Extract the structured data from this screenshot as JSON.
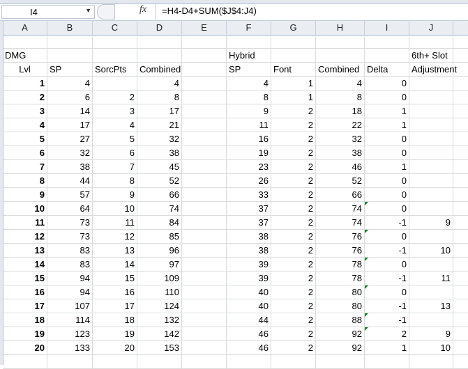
{
  "name_box": "I4",
  "formula": "=H4-D4+SUM($J$4:J4)",
  "columns": [
    "A",
    "B",
    "C",
    "D",
    "E",
    "F",
    "G",
    "H",
    "I",
    "J"
  ],
  "header_rows": [
    [
      "DMG",
      "",
      "",
      "",
      "",
      "Hybrid",
      "",
      "",
      "",
      "6th+ Slot"
    ],
    [
      "Lvl",
      "SP",
      "SorcPts",
      "Combined",
      "",
      "SP",
      "Font",
      "Combined",
      "Delta",
      "Adjustment"
    ]
  ],
  "rows": [
    [
      "1",
      "4",
      "",
      "4",
      "",
      "4",
      "1",
      "4",
      "0",
      ""
    ],
    [
      "2",
      "6",
      "2",
      "8",
      "",
      "8",
      "1",
      "8",
      "0",
      ""
    ],
    [
      "3",
      "14",
      "3",
      "17",
      "",
      "9",
      "2",
      "18",
      "1",
      ""
    ],
    [
      "4",
      "17",
      "4",
      "21",
      "",
      "11",
      "2",
      "22",
      "1",
      ""
    ],
    [
      "5",
      "27",
      "5",
      "32",
      "",
      "16",
      "2",
      "32",
      "0",
      ""
    ],
    [
      "6",
      "32",
      "6",
      "38",
      "",
      "19",
      "2",
      "38",
      "0",
      ""
    ],
    [
      "7",
      "38",
      "7",
      "45",
      "",
      "23",
      "2",
      "46",
      "1",
      ""
    ],
    [
      "8",
      "44",
      "8",
      "52",
      "",
      "26",
      "2",
      "52",
      "0",
      ""
    ],
    [
      "9",
      "57",
      "9",
      "66",
      "",
      "33",
      "2",
      "66",
      "0",
      ""
    ],
    [
      "10",
      "64",
      "10",
      "74",
      "",
      "37",
      "2",
      "74",
      "0",
      ""
    ],
    [
      "11",
      "73",
      "11",
      "84",
      "",
      "37",
      "2",
      "74",
      "-1",
      "9"
    ],
    [
      "12",
      "73",
      "12",
      "85",
      "",
      "38",
      "2",
      "76",
      "0",
      ""
    ],
    [
      "13",
      "83",
      "13",
      "96",
      "",
      "38",
      "2",
      "76",
      "-1",
      "10"
    ],
    [
      "14",
      "83",
      "14",
      "97",
      "",
      "39",
      "2",
      "78",
      "0",
      ""
    ],
    [
      "15",
      "94",
      "15",
      "109",
      "",
      "39",
      "2",
      "78",
      "-1",
      "11"
    ],
    [
      "16",
      "94",
      "16",
      "110",
      "",
      "40",
      "2",
      "80",
      "0",
      ""
    ],
    [
      "17",
      "107",
      "17",
      "124",
      "",
      "40",
      "2",
      "80",
      "-1",
      "13"
    ],
    [
      "18",
      "114",
      "18",
      "132",
      "",
      "44",
      "2",
      "88",
      "-1",
      ""
    ],
    [
      "19",
      "123",
      "19",
      "142",
      "",
      "46",
      "2",
      "92",
      "2",
      "9"
    ],
    [
      "20",
      "133",
      "20",
      "153",
      "",
      "46",
      "2",
      "92",
      "1",
      "10"
    ]
  ],
  "error_flag_levels": [
    10,
    12,
    14,
    16,
    18,
    19
  ],
  "colors": {
    "error_flag": "#1e7b2a",
    "header_bg": "#eaedf1",
    "gridline": "#dadcdd"
  }
}
